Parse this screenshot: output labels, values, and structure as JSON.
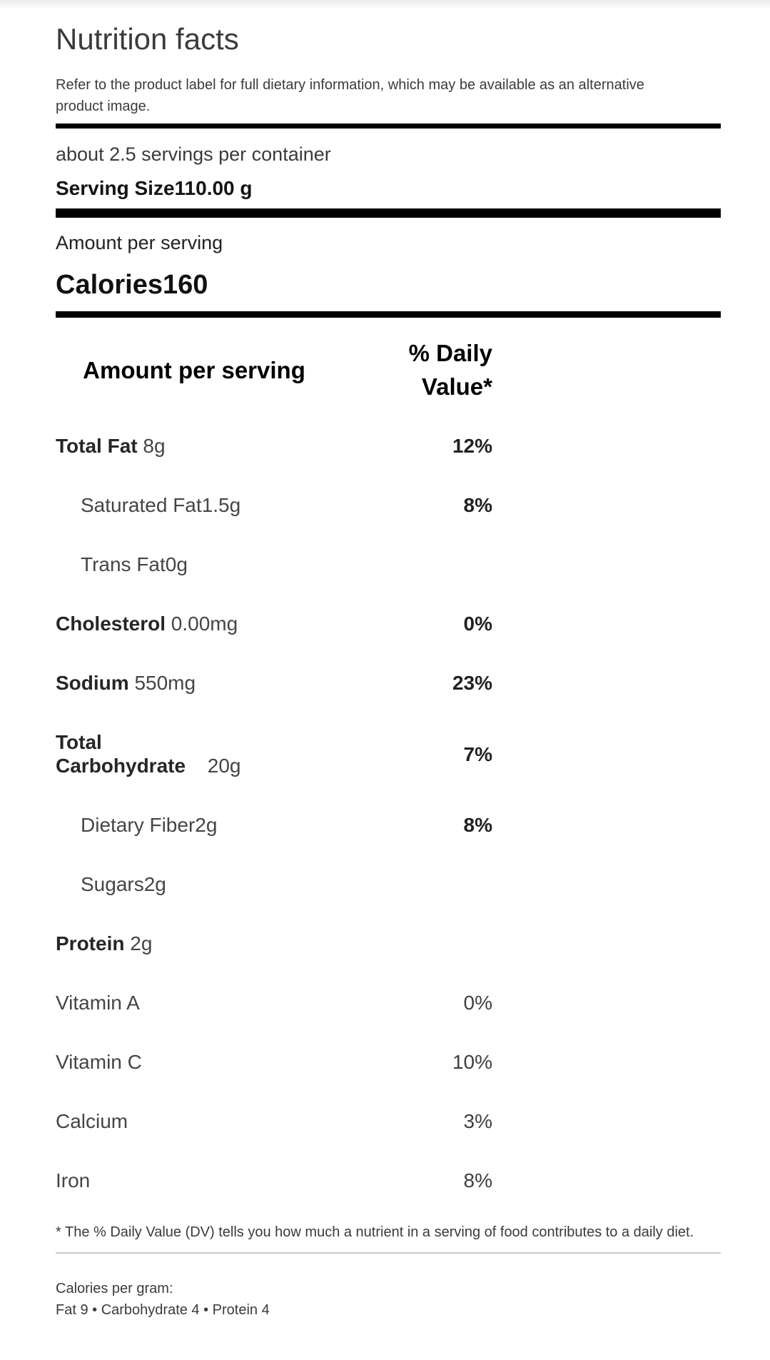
{
  "label": {
    "title": "Nutrition facts",
    "disclaimer": "Refer to the product label for full dietary information, which may be available as an alternative product image.",
    "servings_per_container": "about 2.5 servings per container",
    "serving_size_label": "Serving Size",
    "serving_size_value": "110.00 g",
    "amount_per_serving": "Amount per serving",
    "calories_label": "Calories",
    "calories_value": "160",
    "footnote": "* The % Daily Value (DV) tells you how much a nutrient in a serving of food contributes to a daily diet.",
    "calories_per_gram_label": "Calories per gram:",
    "calories_per_gram_values": "Fat 9 • Carbohydrate 4 • Protein 4"
  },
  "table": {
    "header": {
      "col1": "Amount per serving",
      "col2": "% Daily Value*"
    },
    "rows": [
      {
        "name": "Total Fat",
        "amount": " 8g",
        "dv": "12%",
        "name_bold": true,
        "indent": false,
        "dv_bold": true
      },
      {
        "name": "Saturated Fat",
        "amount": "1.5g",
        "dv": "8%",
        "name_bold": false,
        "indent": true,
        "dv_bold": true
      },
      {
        "name": "Trans Fat",
        "amount": "0g",
        "dv": "",
        "name_bold": false,
        "indent": true,
        "dv_bold": false
      },
      {
        "name": "Cholesterol",
        "amount": " 0.00mg",
        "dv": "0%",
        "name_bold": true,
        "indent": false,
        "dv_bold": true
      },
      {
        "name": "Sodium",
        "amount": " 550mg",
        "dv": "23%",
        "name_bold": true,
        "indent": false,
        "dv_bold": true
      },
      {
        "name": "Total Carbohydrate",
        "amount": " 20g",
        "dv": "7%",
        "name_bold": true,
        "indent": false,
        "dv_bold": true
      },
      {
        "name": "Dietary Fiber",
        "amount": "2g",
        "dv": "8%",
        "name_bold": false,
        "indent": true,
        "dv_bold": true
      },
      {
        "name": "Sugars",
        "amount": "2g",
        "dv": "",
        "name_bold": false,
        "indent": true,
        "dv_bold": false
      },
      {
        "name": "Protein",
        "amount": " 2g",
        "dv": "",
        "name_bold": true,
        "indent": false,
        "dv_bold": false
      },
      {
        "name": "Vitamin A",
        "amount": "",
        "dv": "0%",
        "name_bold": false,
        "indent": false,
        "dv_bold": false
      },
      {
        "name": "Vitamin C",
        "amount": "",
        "dv": "10%",
        "name_bold": false,
        "indent": false,
        "dv_bold": false
      },
      {
        "name": "Calcium",
        "amount": "",
        "dv": "3%",
        "name_bold": false,
        "indent": false,
        "dv_bold": false
      },
      {
        "name": "Iron",
        "amount": "",
        "dv": "8%",
        "name_bold": false,
        "indent": false,
        "dv_bold": false
      }
    ]
  },
  "colors": {
    "bar": "#000000",
    "divider": "#c9c9c9",
    "text_primary": "#3b3b3b",
    "text_emphasis": "#111111"
  }
}
